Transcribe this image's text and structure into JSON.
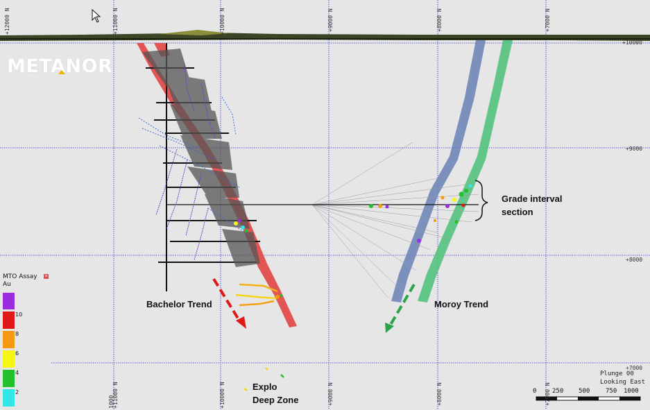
{
  "logo": {
    "text": "METANOR"
  },
  "top_ticks": [
    "+12000 N",
    "+11000 N",
    "+10000 N",
    "+9000 N",
    "+8000 N",
    "+7000 N"
  ],
  "bottom_ticks": [
    "1000",
    "+11000 N",
    "+10000 N",
    "+9000 N",
    "+8000 N",
    "+7000 N"
  ],
  "right_ticks": [
    "+10000",
    "+9000",
    "+8000",
    "+7000"
  ],
  "labels": {
    "bachelor": "Bachelor Trend",
    "moroy": "Moroy Trend",
    "grade_line1": "Grade interval",
    "grade_line2": "section",
    "explo_line1": "Explo",
    "explo_line2": "Deep Zone"
  },
  "legend": {
    "title_line1": "MTO Assay",
    "title_line2": "Au",
    "close_icon": "close-icon",
    "colors": [
      "#9b2de0",
      "#e01818",
      "#f39a12",
      "#f5f516",
      "#22c02a",
      "#33e6e6"
    ],
    "values": [
      "10",
      "8",
      "6",
      "4",
      "2"
    ]
  },
  "view": {
    "plunge": "Plunge 00",
    "looking": "Looking East"
  },
  "scale_bar": {
    "labels": [
      "0",
      "250",
      "500",
      "750",
      "1000"
    ]
  },
  "colors": {
    "background": "#e6e6e6",
    "grid": "#2a2ad0",
    "bachelor_trend": "#e23b3b",
    "moroy_blue": "#6f86b8",
    "moroy_green": "#54c27e",
    "topography": "#4a5a2a"
  }
}
